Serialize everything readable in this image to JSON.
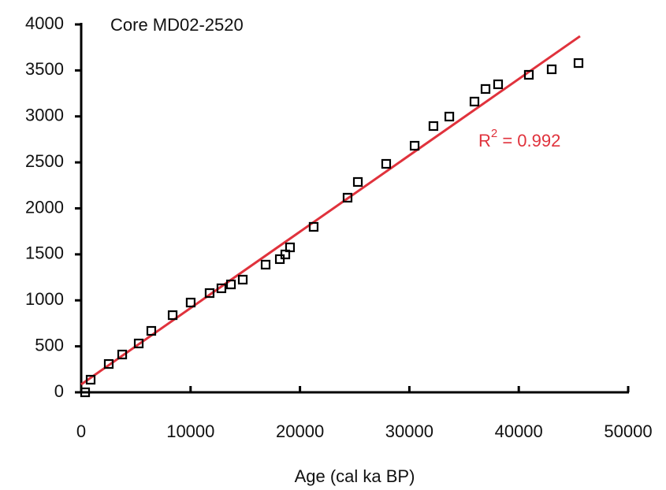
{
  "chart_data": {
    "type": "scatter",
    "title": "Core MD02-2520",
    "xlabel": "Age (cal ka BP)",
    "x": [
      360,
      865,
      2520,
      3750,
      5260,
      6410,
      8360,
      10010,
      11740,
      12820,
      13690,
      14770,
      16860,
      18160,
      18660,
      19090,
      21250,
      24350,
      25290,
      27880,
      30480,
      32200,
      33650,
      35950,
      36960,
      38110,
      40920,
      43010,
      45460
    ],
    "values": [
      0,
      137,
      308,
      411,
      531,
      668,
      839,
      976,
      1079,
      1131,
      1173,
      1225,
      1388,
      1448,
      1499,
      1576,
      1799,
      2116,
      2287,
      2484,
      2681,
      2895,
      2998,
      3161,
      3298,
      3349,
      3452,
      3512,
      3580
    ],
    "color": "#000000",
    "fit": {
      "x": [
        0,
        45600
      ],
      "y": [
        86,
        3872
      ],
      "color": "#e0323c"
    },
    "annotation": {
      "base": "R",
      "sup": "2",
      "tail": " = 0.992"
    },
    "xlim": [
      0,
      50000
    ],
    "xticks": [
      0,
      10000,
      20000,
      30000,
      40000,
      50000
    ],
    "ylim": [
      0,
      4000
    ],
    "yticks": [
      0,
      500,
      1000,
      1500,
      2000,
      2500,
      3000,
      3500,
      4000
    ],
    "grid": false
  }
}
